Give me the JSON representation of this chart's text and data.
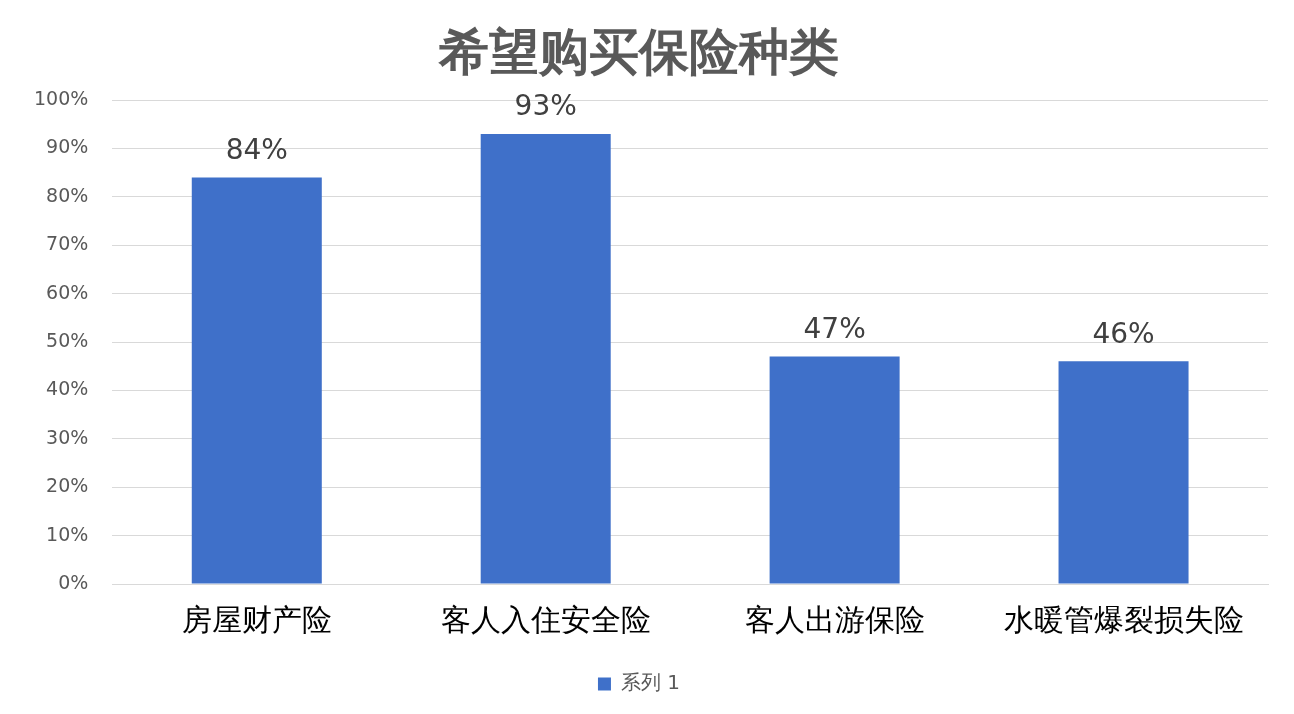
{
  "chart_data": {
    "type": "bar",
    "title": "希望购买保险种类",
    "categories": [
      "房屋财产险",
      "客人入住安全险",
      "客人出游保险",
      "水暖管爆裂损失险"
    ],
    "series": [
      {
        "name": "系列 1",
        "color": "#3f70c9",
        "values": [
          84,
          93,
          47,
          46
        ],
        "value_labels": [
          "84%",
          "93%",
          "47%",
          "46%"
        ]
      }
    ],
    "ylim": [
      0,
      100
    ],
    "yticks": [
      {
        "value": 0,
        "label": "0%"
      },
      {
        "value": 10,
        "label": "10%"
      },
      {
        "value": 20,
        "label": "20%"
      },
      {
        "value": 30,
        "label": "30%"
      },
      {
        "value": 40,
        "label": "40%"
      },
      {
        "value": 50,
        "label": "50%"
      },
      {
        "value": 60,
        "label": "60%"
      },
      {
        "value": 70,
        "label": "70%"
      },
      {
        "value": 80,
        "label": "80%"
      },
      {
        "value": 90,
        "label": "90%"
      },
      {
        "value": 100,
        "label": "100%"
      }
    ],
    "grid": "y",
    "legend": "bottom"
  }
}
